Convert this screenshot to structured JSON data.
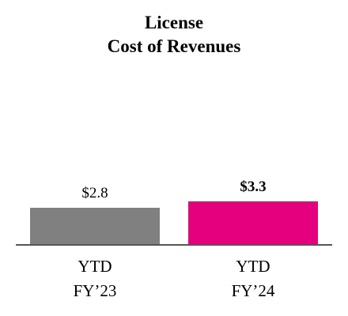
{
  "chart_data": {
    "type": "bar",
    "title_lines": [
      "License",
      "Cost of Revenues"
    ],
    "categories": [
      [
        "YTD",
        "FY’23"
      ],
      [
        "YTD",
        "FY’24"
      ]
    ],
    "values": [
      2.8,
      3.3
    ],
    "value_labels": [
      "$2.8",
      "$3.3"
    ],
    "value_label_bold": [
      false,
      true
    ],
    "colors": [
      "#808080",
      "#e5007d"
    ],
    "axis_color": "#555555",
    "ylim": [
      0,
      14
    ],
    "grid": false,
    "legend": "none"
  }
}
